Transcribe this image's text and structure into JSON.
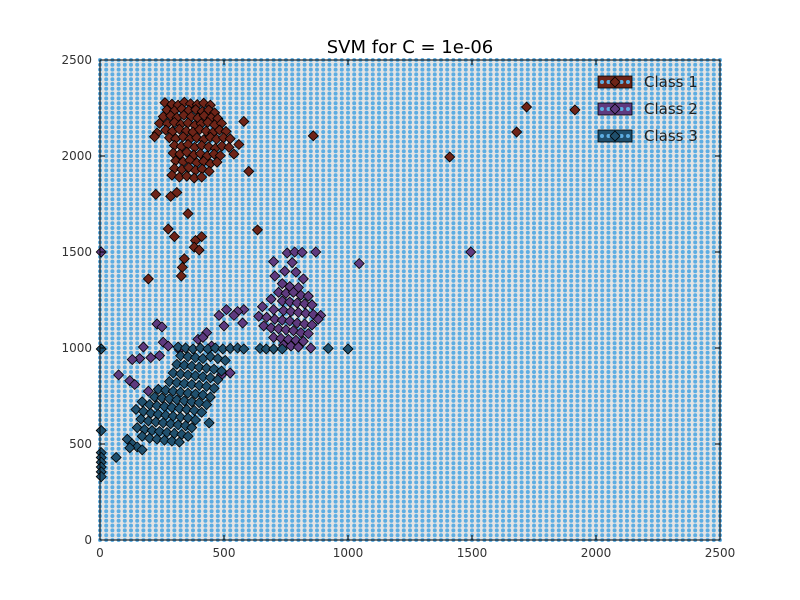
{
  "chart_data": {
    "type": "scatter",
    "title": "SVM for C = 1e-06",
    "xlabel": "",
    "ylabel": "",
    "xlim": [
      0,
      2500
    ],
    "ylim": [
      0,
      2500
    ],
    "x_ticks": [
      0,
      500,
      1000,
      1500,
      2000,
      2500
    ],
    "y_ticks": [
      0,
      500,
      1000,
      1500,
      2000,
      2500
    ],
    "x_tick_labels": [
      "0",
      "500",
      "1000",
      "1500",
      "2000",
      "2500"
    ],
    "y_tick_labels": [
      "0",
      "500",
      "1000",
      "1500",
      "2000",
      "2500"
    ],
    "grid": false,
    "legend_position": "top-right",
    "background": {
      "description_of_region": "decision regions shown as a dense dot grid; the whole plot area is predicted as one class",
      "dot_color": "#5dade2",
      "grid_step": 25
    },
    "series": [
      {
        "name": "Class 1",
        "color": "#6e2418",
        "marker": "diamond",
        "points": [
          [
            262,
            2278
          ],
          [
            290,
            2270
          ],
          [
            315,
            2265
          ],
          [
            340,
            2280
          ],
          [
            365,
            2272
          ],
          [
            392,
            2268
          ],
          [
            418,
            2275
          ],
          [
            445,
            2265
          ],
          [
            270,
            2240
          ],
          [
            300,
            2235
          ],
          [
            330,
            2245
          ],
          [
            358,
            2238
          ],
          [
            386,
            2242
          ],
          [
            412,
            2232
          ],
          [
            438,
            2240
          ],
          [
            462,
            2225
          ],
          [
            255,
            2205
          ],
          [
            285,
            2210
          ],
          [
            310,
            2200
          ],
          [
            338,
            2212
          ],
          [
            368,
            2205
          ],
          [
            395,
            2198
          ],
          [
            420,
            2210
          ],
          [
            448,
            2200
          ],
          [
            475,
            2195
          ],
          [
            240,
            2170
          ],
          [
            272,
            2168
          ],
          [
            300,
            2175
          ],
          [
            326,
            2165
          ],
          [
            355,
            2172
          ],
          [
            382,
            2160
          ],
          [
            408,
            2168
          ],
          [
            435,
            2175
          ],
          [
            462,
            2162
          ],
          [
            490,
            2170
          ],
          [
            265,
            2135
          ],
          [
            292,
            2128
          ],
          [
            320,
            2140
          ],
          [
            348,
            2130
          ],
          [
            375,
            2125
          ],
          [
            402,
            2138
          ],
          [
            428,
            2130
          ],
          [
            455,
            2122
          ],
          [
            482,
            2135
          ],
          [
            508,
            2128
          ],
          [
            280,
            2095
          ],
          [
            305,
            2090
          ],
          [
            335,
            2100
          ],
          [
            362,
            2088
          ],
          [
            390,
            2095
          ],
          [
            418,
            2085
          ],
          [
            445,
            2098
          ],
          [
            470,
            2088
          ],
          [
            498,
            2095
          ],
          [
            525,
            2090
          ],
          [
            300,
            2055
          ],
          [
            328,
            2050
          ],
          [
            355,
            2060
          ],
          [
            382,
            2045
          ],
          [
            410,
            2055
          ],
          [
            438,
            2048
          ],
          [
            465,
            2040
          ],
          [
            492,
            2052
          ],
          [
            520,
            2045
          ],
          [
            295,
            2015
          ],
          [
            322,
            2010
          ],
          [
            350,
            2020
          ],
          [
            378,
            2005
          ],
          [
            405,
            2012
          ],
          [
            432,
            2000
          ],
          [
            460,
            2010
          ],
          [
            485,
            2002
          ],
          [
            305,
            1975
          ],
          [
            335,
            1970
          ],
          [
            362,
            1978
          ],
          [
            390,
            1965
          ],
          [
            418,
            1972
          ],
          [
            445,
            1960
          ],
          [
            472,
            1968
          ],
          [
            300,
            1935
          ],
          [
            330,
            1930
          ],
          [
            358,
            1940
          ],
          [
            385,
            1925
          ],
          [
            412,
            1932
          ],
          [
            440,
            1920
          ],
          [
            290,
            1900
          ],
          [
            320,
            1890
          ],
          [
            350,
            1895
          ],
          [
            380,
            1885
          ],
          [
            410,
            1890
          ],
          [
            230,
            2120
          ],
          [
            220,
            2100
          ],
          [
            580,
            2180
          ],
          [
            600,
            1920
          ],
          [
            560,
            2060
          ],
          [
            540,
            2010
          ],
          [
            225,
            1800
          ],
          [
            285,
            1790
          ],
          [
            310,
            1810
          ],
          [
            355,
            1700
          ],
          [
            275,
            1620
          ],
          [
            300,
            1580
          ],
          [
            385,
            1560
          ],
          [
            380,
            1525
          ],
          [
            340,
            1465
          ],
          [
            332,
            1420
          ],
          [
            328,
            1375
          ],
          [
            195,
            1360
          ],
          [
            400,
            1510
          ],
          [
            410,
            1580
          ],
          [
            635,
            1615
          ],
          [
            860,
            2105
          ],
          [
            1410,
            1995
          ],
          [
            1680,
            2125
          ],
          [
            1720,
            2255
          ],
          [
            1915,
            2240
          ]
        ]
      },
      {
        "name": "Class 2",
        "color": "#5e3a7f",
        "marker": "diamond",
        "points": [
          [
            5,
            1500
          ],
          [
            755,
            1495
          ],
          [
            785,
            1500
          ],
          [
            815,
            1498
          ],
          [
            870,
            1500
          ],
          [
            1045,
            1440
          ],
          [
            1495,
            1500
          ],
          [
            700,
            1450
          ],
          [
            775,
            1445
          ],
          [
            705,
            1375
          ],
          [
            745,
            1400
          ],
          [
            790,
            1395
          ],
          [
            820,
            1360
          ],
          [
            735,
            1335
          ],
          [
            765,
            1320
          ],
          [
            800,
            1315
          ],
          [
            720,
            1290
          ],
          [
            750,
            1285
          ],
          [
            780,
            1290
          ],
          [
            810,
            1275
          ],
          [
            840,
            1270
          ],
          [
            690,
            1255
          ],
          [
            735,
            1245
          ],
          [
            765,
            1240
          ],
          [
            795,
            1235
          ],
          [
            825,
            1230
          ],
          [
            855,
            1225
          ],
          [
            655,
            1215
          ],
          [
            700,
            1200
          ],
          [
            740,
            1195
          ],
          [
            770,
            1190
          ],
          [
            800,
            1185
          ],
          [
            830,
            1180
          ],
          [
            860,
            1175
          ],
          [
            890,
            1170
          ],
          [
            640,
            1165
          ],
          [
            672,
            1160
          ],
          [
            705,
            1150
          ],
          [
            735,
            1145
          ],
          [
            765,
            1140
          ],
          [
            795,
            1130
          ],
          [
            825,
            1125
          ],
          [
            855,
            1120
          ],
          [
            880,
            1150
          ],
          [
            660,
            1115
          ],
          [
            690,
            1105
          ],
          [
            720,
            1100
          ],
          [
            750,
            1095
          ],
          [
            780,
            1090
          ],
          [
            810,
            1080
          ],
          [
            840,
            1075
          ],
          [
            700,
            1055
          ],
          [
            730,
            1050
          ],
          [
            760,
            1045
          ],
          [
            790,
            1040
          ],
          [
            820,
            1035
          ],
          [
            740,
            1015
          ],
          [
            770,
            1010
          ],
          [
            800,
            1005
          ],
          [
            850,
            1000
          ],
          [
            580,
            1200
          ],
          [
            555,
            1190
          ],
          [
            510,
            1200
          ],
          [
            480,
            1170
          ],
          [
            540,
            1170
          ],
          [
            575,
            1130
          ],
          [
            500,
            1115
          ],
          [
            430,
            1080
          ],
          [
            395,
            1045
          ],
          [
            415,
            1055
          ],
          [
            450,
            1010
          ],
          [
            320,
            990
          ],
          [
            255,
            1030
          ],
          [
            275,
            1010
          ],
          [
            175,
            1005
          ],
          [
            205,
            950
          ],
          [
            160,
            945
          ],
          [
            130,
            940
          ],
          [
            240,
            960
          ],
          [
            230,
            1125
          ],
          [
            250,
            1110
          ],
          [
            75,
            860
          ],
          [
            120,
            830
          ],
          [
            140,
            810
          ],
          [
            195,
            775
          ],
          [
            490,
            860
          ],
          [
            525,
            870
          ]
        ]
      },
      {
        "name": "Class 3",
        "color": "#20506e",
        "marker": "diamond",
        "points": [
          [
            5,
            995
          ],
          [
            315,
            1005
          ],
          [
            345,
            1000
          ],
          [
            375,
            995
          ],
          [
            405,
            1000
          ],
          [
            435,
            995
          ],
          [
            465,
            1000
          ],
          [
            495,
            995
          ],
          [
            525,
            998
          ],
          [
            555,
            1000
          ],
          [
            580,
            995
          ],
          [
            645,
            998
          ],
          [
            670,
            995
          ],
          [
            700,
            995
          ],
          [
            735,
            995
          ],
          [
            920,
            998
          ],
          [
            1000,
            995
          ],
          [
            325,
            960
          ],
          [
            355,
            955
          ],
          [
            385,
            950
          ],
          [
            415,
            945
          ],
          [
            445,
            955
          ],
          [
            475,
            945
          ],
          [
            505,
            935
          ],
          [
            310,
            915
          ],
          [
            340,
            910
          ],
          [
            370,
            905
          ],
          [
            400,
            900
          ],
          [
            430,
            895
          ],
          [
            460,
            890
          ],
          [
            490,
            880
          ],
          [
            295,
            870
          ],
          [
            325,
            865
          ],
          [
            355,
            860
          ],
          [
            385,
            855
          ],
          [
            415,
            850
          ],
          [
            445,
            845
          ],
          [
            475,
            835
          ],
          [
            280,
            825
          ],
          [
            310,
            820
          ],
          [
            340,
            815
          ],
          [
            370,
            810
          ],
          [
            400,
            805
          ],
          [
            430,
            800
          ],
          [
            460,
            790
          ],
          [
            235,
            785
          ],
          [
            265,
            780
          ],
          [
            295,
            775
          ],
          [
            325,
            770
          ],
          [
            355,
            765
          ],
          [
            385,
            760
          ],
          [
            415,
            755
          ],
          [
            445,
            745
          ],
          [
            220,
            745
          ],
          [
            250,
            740
          ],
          [
            280,
            735
          ],
          [
            310,
            730
          ],
          [
            340,
            725
          ],
          [
            370,
            720
          ],
          [
            400,
            715
          ],
          [
            430,
            705
          ],
          [
            170,
            720
          ],
          [
            200,
            705
          ],
          [
            230,
            700
          ],
          [
            260,
            695
          ],
          [
            290,
            690
          ],
          [
            320,
            685
          ],
          [
            350,
            680
          ],
          [
            380,
            675
          ],
          [
            410,
            665
          ],
          [
            145,
            680
          ],
          [
            175,
            670
          ],
          [
            205,
            660
          ],
          [
            235,
            655
          ],
          [
            265,
            650
          ],
          [
            295,
            645
          ],
          [
            325,
            640
          ],
          [
            355,
            635
          ],
          [
            385,
            625
          ],
          [
            440,
            610
          ],
          [
            165,
            630
          ],
          [
            195,
            620
          ],
          [
            225,
            615
          ],
          [
            255,
            610
          ],
          [
            285,
            605
          ],
          [
            315,
            600
          ],
          [
            345,
            595
          ],
          [
            370,
            585
          ],
          [
            150,
            585
          ],
          [
            180,
            575
          ],
          [
            210,
            570
          ],
          [
            240,
            565
          ],
          [
            270,
            560
          ],
          [
            300,
            555
          ],
          [
            330,
            550
          ],
          [
            355,
            540
          ],
          [
            170,
            540
          ],
          [
            200,
            530
          ],
          [
            230,
            525
          ],
          [
            260,
            520
          ],
          [
            290,
            515
          ],
          [
            320,
            510
          ],
          [
            110,
            525
          ],
          [
            130,
            500
          ],
          [
            150,
            485
          ],
          [
            170,
            470
          ],
          [
            120,
            480
          ],
          [
            65,
            430
          ],
          [
            5,
            570
          ],
          [
            5,
            455
          ],
          [
            5,
            430
          ],
          [
            5,
            405
          ],
          [
            5,
            380
          ],
          [
            5,
            355
          ],
          [
            5,
            330
          ]
        ]
      }
    ]
  }
}
